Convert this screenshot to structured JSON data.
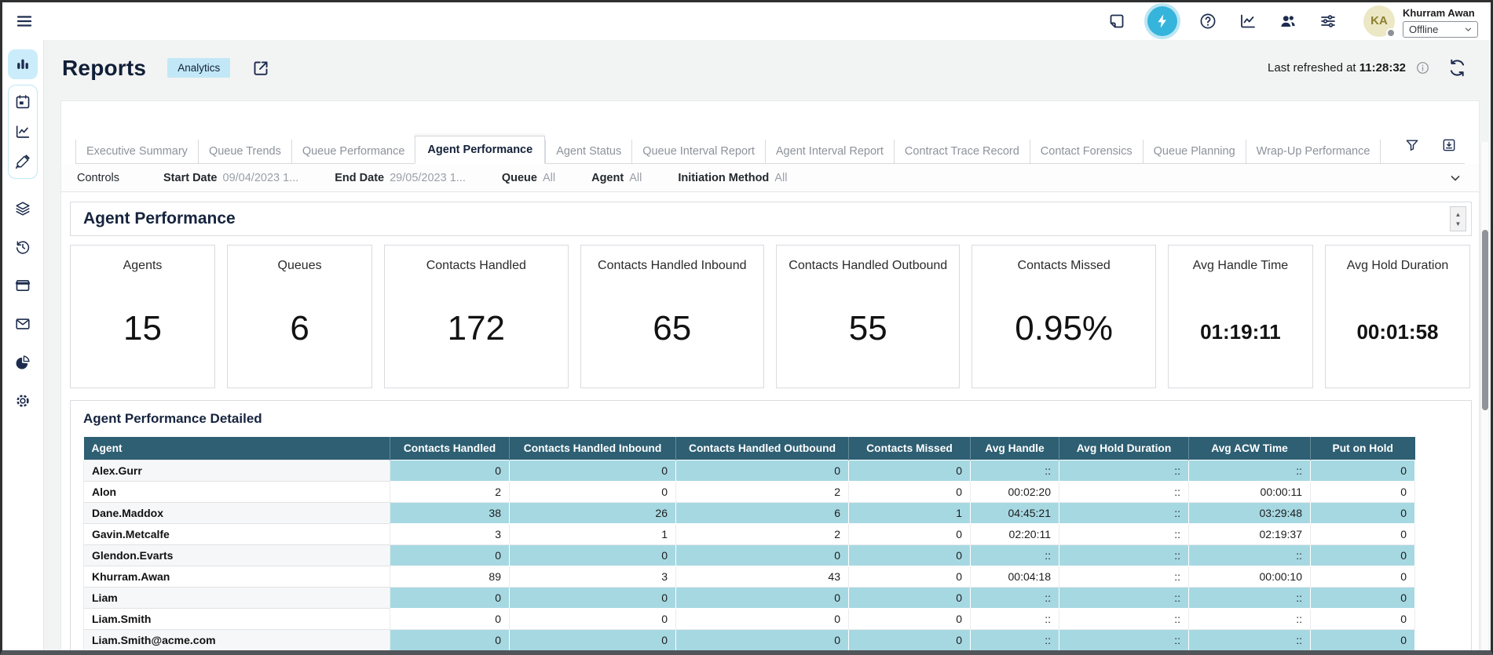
{
  "topbar": {
    "icons": [
      {
        "name": "notes-icon",
        "active": false
      },
      {
        "name": "flash-icon",
        "active": true
      },
      {
        "name": "help-icon",
        "active": false
      },
      {
        "name": "metrics-icon",
        "active": false
      },
      {
        "name": "users-icon",
        "active": false
      },
      {
        "name": "sliders-icon",
        "active": false
      }
    ],
    "user": {
      "initials": "KA",
      "name": "Khurram Awan",
      "status": "Offline"
    }
  },
  "sidebar": {
    "groups": [
      {
        "style": "active",
        "icons": [
          "bar-chart-icon"
        ]
      },
      {
        "style": "boxed",
        "icons": [
          "calendar-icon",
          "line-chart-icon",
          "design-icon"
        ]
      },
      {
        "style": "plain",
        "icons": [
          "layers-icon",
          "history-icon",
          "window-icon",
          "mail-icon",
          "pie-chart-icon",
          "gear-icon"
        ]
      }
    ]
  },
  "header": {
    "title": "Reports",
    "badge": "Analytics",
    "refreshed_label": "Last refreshed at",
    "refreshed_time": "11:28:32"
  },
  "tabs": [
    {
      "label": "Executive Summary",
      "active": false
    },
    {
      "label": "Queue Trends",
      "active": false
    },
    {
      "label": "Queue Performance",
      "active": false
    },
    {
      "label": "Agent Performance",
      "active": true
    },
    {
      "label": "Agent Status",
      "active": false
    },
    {
      "label": "Queue Interval Report",
      "active": false
    },
    {
      "label": "Agent Interval Report",
      "active": false
    },
    {
      "label": "Contract Trace Record",
      "active": false
    },
    {
      "label": "Contact Forensics",
      "active": false
    },
    {
      "label": "Queue Planning",
      "active": false
    },
    {
      "label": "Wrap-Up Performance",
      "active": false
    }
  ],
  "controls": {
    "label": "Controls",
    "filters": [
      {
        "label": "Start Date",
        "value": "09/04/2023 1..."
      },
      {
        "label": "End Date",
        "value": "29/05/2023 1..."
      },
      {
        "label": "Queue",
        "value": "All"
      },
      {
        "label": "Agent",
        "value": "All"
      },
      {
        "label": "Initiation Method",
        "value": "All"
      }
    ]
  },
  "section": {
    "title": "Agent Performance"
  },
  "kpis": [
    {
      "label": "Agents",
      "value": "15"
    },
    {
      "label": "Queues",
      "value": "6"
    },
    {
      "label": "Contacts Handled",
      "value": "172"
    },
    {
      "label": "Contacts Handled Inbound",
      "value": "65"
    },
    {
      "label": "Contacts Handled Outbound",
      "value": "55"
    },
    {
      "label": "Contacts Missed",
      "value": "0.95%"
    },
    {
      "label": "Avg Handle Time",
      "value": "01:19:11"
    },
    {
      "label": "Avg Hold Duration",
      "value": "00:01:58"
    }
  ],
  "detail": {
    "title": "Agent Performance Detailed",
    "columns": [
      "Agent",
      "Contacts Handled",
      "Contacts Handled Inbound",
      "Contacts Handled Outbound",
      "Contacts Missed",
      "Avg Handle",
      "Avg Hold Duration",
      "Avg ACW Time",
      "Put on Hold"
    ],
    "rows": [
      [
        "Alex.Gurr",
        "0",
        "0",
        "0",
        "0",
        "::",
        "::",
        "::",
        "0"
      ],
      [
        "Alon",
        "2",
        "0",
        "2",
        "0",
        "00:02:20",
        "::",
        "00:00:11",
        "0"
      ],
      [
        "Dane.Maddox",
        "38",
        "26",
        "6",
        "1",
        "04:45:21",
        "::",
        "03:29:48",
        "0"
      ],
      [
        "Gavin.Metcalfe",
        "3",
        "1",
        "2",
        "0",
        "02:20:11",
        "::",
        "02:19:37",
        "0"
      ],
      [
        "Glendon.Evarts",
        "0",
        "0",
        "0",
        "0",
        "::",
        "::",
        "::",
        "0"
      ],
      [
        "Khurram.Awan",
        "89",
        "3",
        "43",
        "0",
        "00:04:18",
        "::",
        "00:00:10",
        "0"
      ],
      [
        "Liam",
        "0",
        "0",
        "0",
        "0",
        "::",
        "::",
        "::",
        "0"
      ],
      [
        "Liam.Smith",
        "0",
        "0",
        "0",
        "0",
        "::",
        "::",
        "::",
        "0"
      ],
      [
        "Liam.Smith@acme.com",
        "0",
        "0",
        "0",
        "0",
        "::",
        "::",
        "::",
        "0"
      ]
    ]
  },
  "colors": {
    "accent": "#35b4dc",
    "navy": "#1d2c4e",
    "table_header": "#2e5f73",
    "row_highlight": "#a6d8e2",
    "active_tile": "#cbedfb",
    "badge_bg": "#c2e8f7"
  }
}
